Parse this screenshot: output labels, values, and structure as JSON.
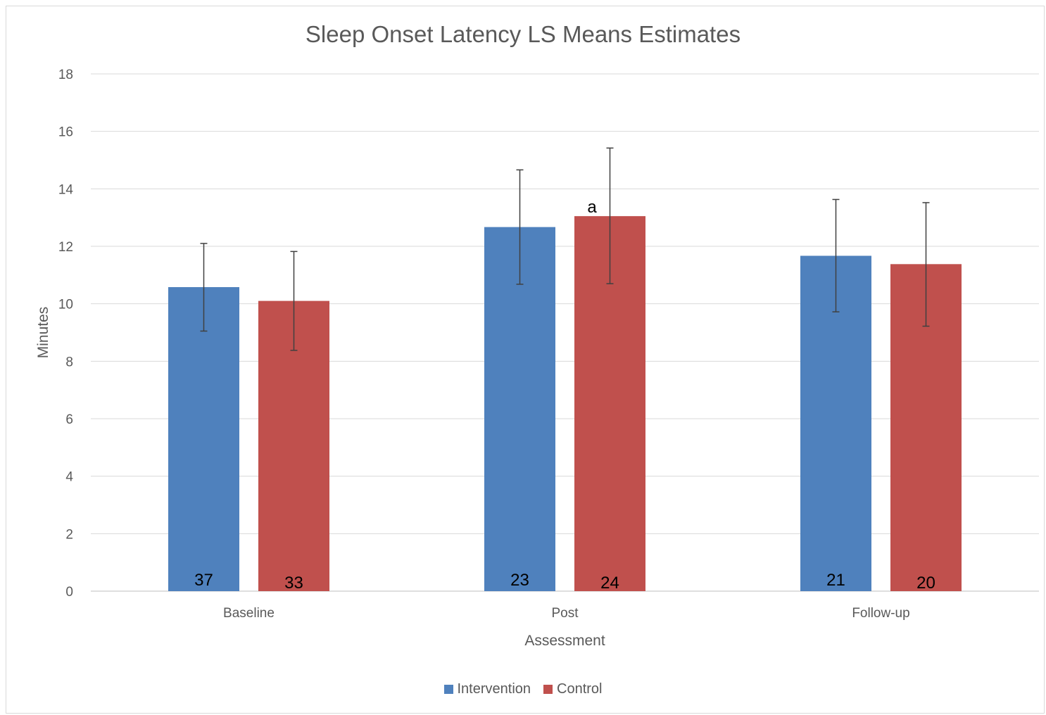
{
  "chart_data": {
    "type": "bar",
    "title": "Sleep Onset Latency LS Means Estimates",
    "xlabel": "Assessment",
    "ylabel": "Minutes",
    "ylim": [
      0,
      18
    ],
    "yticks": [
      0,
      2,
      4,
      6,
      8,
      10,
      12,
      14,
      16,
      18
    ],
    "grid": true,
    "legend_position": "bottom",
    "categories": [
      "Baseline",
      "Post",
      "Follow-up"
    ],
    "series": [
      {
        "name": "Intervention",
        "color": "#4f81bd",
        "values": [
          10.58,
          12.67,
          11.67
        ],
        "error_low": [
          9.05,
          10.68,
          9.72
        ],
        "error_high": [
          12.1,
          14.66,
          13.63
        ],
        "data_labels": [
          "37",
          "23",
          "21"
        ]
      },
      {
        "name": "Control",
        "color": "#c0504d",
        "values": [
          10.1,
          13.05,
          11.38
        ],
        "error_low": [
          8.38,
          10.7,
          9.22
        ],
        "error_high": [
          11.82,
          15.42,
          13.52
        ],
        "data_labels": [
          "33",
          "24",
          "20"
        ]
      }
    ],
    "annotations": [
      {
        "text": "a",
        "category": "Post",
        "series": "Control"
      }
    ]
  }
}
